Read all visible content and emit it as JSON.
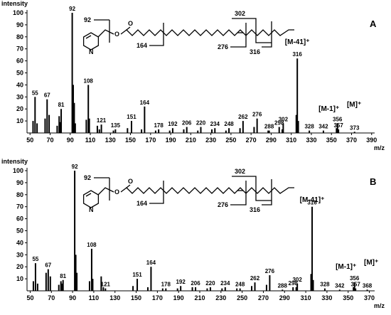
{
  "chart_data": [
    {
      "type": "stem",
      "panel_label": "A",
      "ylabel": "intensity",
      "xlabel": "m/z",
      "xlim": [
        47,
        393
      ],
      "xticks": [
        50,
        70,
        90,
        110,
        130,
        150,
        170,
        190,
        210,
        230,
        250,
        270,
        290,
        310,
        330,
        350,
        370,
        390
      ],
      "ylim": [
        0,
        100
      ],
      "yticks": [
        10,
        20,
        30,
        40,
        50,
        60,
        70,
        80,
        90,
        100
      ],
      "color": "#000000",
      "x": [
        55,
        67,
        81,
        92,
        108,
        121,
        135,
        151,
        164,
        178,
        192,
        206,
        220,
        234,
        248,
        262,
        276,
        288,
        298,
        302,
        316,
        328,
        342,
        356,
        357,
        373,
        53,
        57,
        65,
        69,
        77,
        79,
        80,
        93,
        94,
        95,
        106,
        109,
        117,
        119,
        133,
        147,
        161,
        175,
        189,
        203,
        217,
        231,
        245,
        259,
        273,
        287,
        301,
        315,
        317,
        355
      ],
      "values": [
        30,
        28,
        20,
        100,
        40,
        7,
        3,
        10,
        22,
        3,
        4,
        5,
        5,
        4,
        4,
        10,
        12,
        2,
        5,
        8,
        62,
        2,
        2,
        8,
        3,
        1,
        10,
        8,
        12,
        15,
        6,
        14,
        9,
        40,
        25,
        8,
        11,
        12,
        6,
        3,
        2,
        4,
        3,
        2,
        2,
        3,
        2,
        3,
        2,
        4,
        5,
        2,
        3,
        15,
        10,
        4
      ],
      "peak_labels": [
        "55",
        "67",
        "81",
        "92",
        "108",
        "121",
        "135",
        "151",
        "164",
        "178",
        "192",
        "206",
        "220",
        "234",
        "248",
        "262",
        "276",
        "288",
        "298",
        "302",
        "316",
        "328",
        "342",
        "356",
        "357",
        "373",
        null,
        null,
        null,
        null,
        null,
        null,
        null,
        null,
        null,
        null,
        null,
        null,
        null,
        null,
        null,
        null,
        null,
        null,
        null,
        null,
        null,
        null,
        null,
        null,
        null,
        null,
        null,
        null,
        null,
        null
      ],
      "ion_labels": [
        "[M-41]⁺",
        "[M-1]⁺",
        "[M]⁺"
      ],
      "structure_labels": [
        "92",
        "164",
        "302",
        "276",
        "316"
      ],
      "atom_labels": [
        "O",
        "O",
        "N"
      ]
    },
    {
      "type": "stem",
      "panel_label": "B",
      "ylabel": "intensity",
      "xlabel": "m/z",
      "xlim": [
        47,
        375
      ],
      "xticks": [
        50,
        70,
        90,
        110,
        130,
        150,
        170,
        190,
        210,
        230,
        250,
        270,
        290,
        310,
        330,
        350,
        370
      ],
      "ylim": [
        0,
        100
      ],
      "yticks": [
        10,
        20,
        30,
        40,
        50,
        60,
        70,
        80,
        90,
        100
      ],
      "color": "#000000",
      "x": [
        55,
        67,
        81,
        92,
        108,
        121,
        151,
        164,
        178,
        192,
        206,
        220,
        234,
        248,
        262,
        276,
        288,
        298,
        302,
        316,
        328,
        342,
        356,
        357,
        368,
        53,
        57,
        65,
        69,
        77,
        79,
        80,
        93,
        94,
        106,
        109,
        117,
        119,
        147,
        161,
        175,
        189,
        203,
        217,
        231,
        245,
        259,
        273,
        301,
        315,
        317,
        355
      ],
      "values": [
        23,
        18,
        9,
        100,
        35,
        2,
        10,
        20,
        2,
        4,
        3,
        3,
        3,
        2,
        7,
        13,
        1,
        3,
        6,
        70,
        2,
        1,
        7,
        2,
        1,
        8,
        6,
        15,
        12,
        5,
        8,
        6,
        30,
        15,
        8,
        10,
        12,
        3,
        4,
        3,
        2,
        2,
        3,
        2,
        2,
        2,
        4,
        5,
        3,
        14,
        9,
        3
      ],
      "peak_labels": [
        "55",
        "67",
        "81",
        "92",
        "108",
        "121",
        "151",
        "164",
        "178",
        "192",
        "206",
        "220",
        "234",
        "248",
        "262",
        "276",
        "288",
        "298",
        "302",
        "316",
        "328",
        "342",
        "356",
        "357",
        "368",
        null,
        null,
        null,
        null,
        null,
        null,
        null,
        null,
        null,
        null,
        null,
        null,
        null,
        null,
        null,
        null,
        null,
        null,
        null,
        null,
        null,
        null,
        null,
        null,
        null,
        null,
        null
      ],
      "ion_labels": [
        "[M-41]⁺",
        "[M-1]⁺",
        "[M]⁺"
      ],
      "structure_labels": [
        "92",
        "164",
        "302",
        "276",
        "316"
      ],
      "atom_labels": [
        "O",
        "O",
        "N"
      ]
    }
  ]
}
